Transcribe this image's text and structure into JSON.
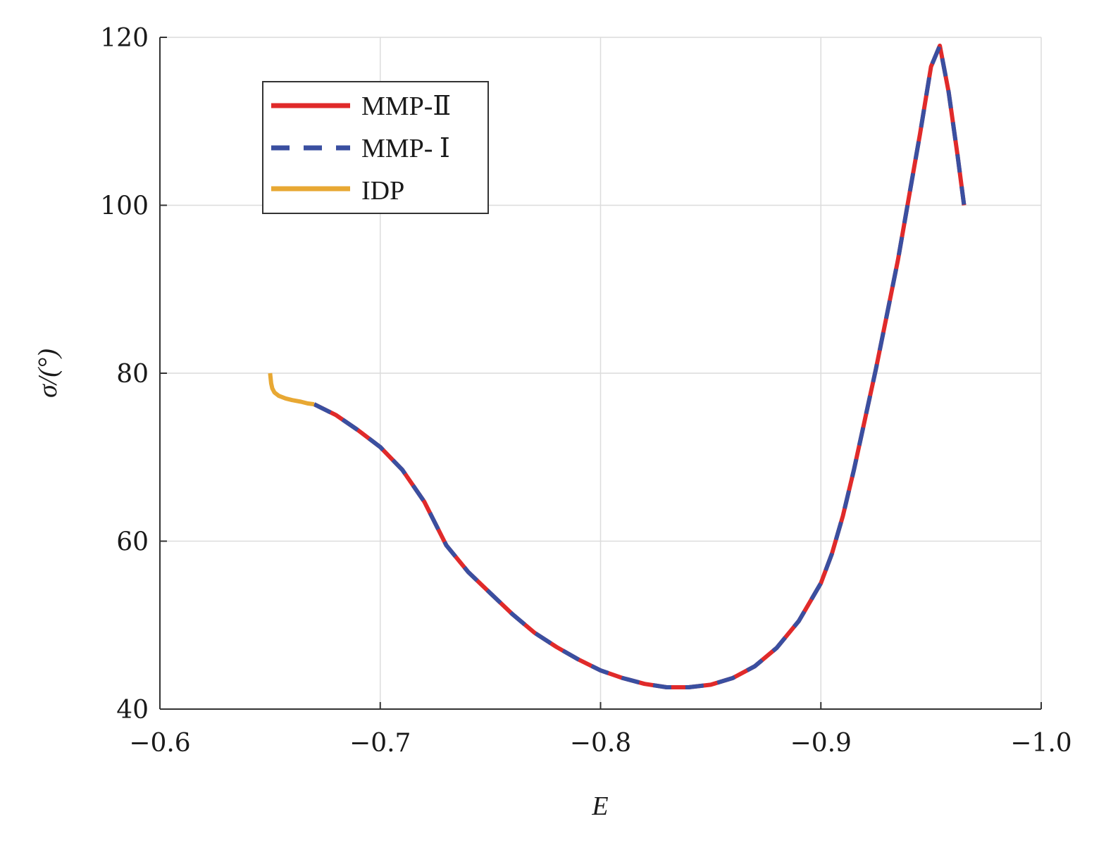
{
  "chart_data": {
    "type": "line",
    "xlabel": "E",
    "ylabel": "σ/(°)",
    "xlim": [
      -0.6,
      -1.0
    ],
    "ylim": [
      40,
      120
    ],
    "x_reversed": true,
    "grid": true,
    "legend_position": "top-left",
    "xticks": [
      -0.6,
      -0.7,
      -0.8,
      -0.9,
      -1.0
    ],
    "xtick_labels": [
      "−0.6",
      "−0.7",
      "−0.8",
      "−0.9",
      "−1.0"
    ],
    "yticks": [
      40,
      60,
      80,
      100,
      120
    ],
    "ytick_labels": [
      "40",
      "60",
      "80",
      "100",
      "120"
    ],
    "series": [
      {
        "name": "MMP-Ⅱ",
        "color": "#e02a2a",
        "dash": "solid",
        "x": [
          -0.67,
          -0.68,
          -0.69,
          -0.7,
          -0.71,
          -0.72,
          -0.73,
          -0.74,
          -0.75,
          -0.76,
          -0.77,
          -0.78,
          -0.79,
          -0.8,
          -0.81,
          -0.82,
          -0.83,
          -0.84,
          -0.85,
          -0.86,
          -0.87,
          -0.88,
          -0.89,
          -0.9,
          -0.905,
          -0.91,
          -0.915,
          -0.92,
          -0.925,
          -0.93,
          -0.935,
          -0.94,
          -0.945,
          -0.95,
          -0.954,
          -0.958,
          -0.962,
          -0.965
        ],
        "y": [
          76.3,
          75.0,
          73.2,
          71.2,
          68.5,
          64.7,
          59.5,
          56.3,
          53.8,
          51.3,
          49.1,
          47.4,
          45.9,
          44.6,
          43.7,
          43.0,
          42.6,
          42.6,
          42.9,
          43.7,
          45.1,
          47.3,
          50.5,
          55.0,
          58.5,
          63.0,
          68.5,
          74.5,
          80.5,
          87.0,
          93.5,
          101.0,
          108.5,
          116.5,
          119.0,
          113.5,
          106.0,
          100.0
        ]
      },
      {
        "name": "MMP- Ⅰ",
        "color": "#3a4fa0",
        "dash": "dashed",
        "x": [
          -0.67,
          -0.68,
          -0.69,
          -0.7,
          -0.71,
          -0.72,
          -0.73,
          -0.74,
          -0.75,
          -0.76,
          -0.77,
          -0.78,
          -0.79,
          -0.8,
          -0.81,
          -0.82,
          -0.83,
          -0.84,
          -0.85,
          -0.86,
          -0.87,
          -0.88,
          -0.89,
          -0.9,
          -0.905,
          -0.91,
          -0.915,
          -0.92,
          -0.925,
          -0.93,
          -0.935,
          -0.94,
          -0.945,
          -0.95,
          -0.954,
          -0.958,
          -0.962,
          -0.965
        ],
        "y": [
          76.3,
          75.0,
          73.2,
          71.2,
          68.5,
          64.7,
          59.5,
          56.3,
          53.8,
          51.3,
          49.1,
          47.4,
          45.9,
          44.6,
          43.7,
          43.0,
          42.6,
          42.6,
          42.9,
          43.7,
          45.1,
          47.3,
          50.5,
          55.0,
          58.5,
          63.0,
          68.5,
          74.5,
          80.5,
          87.0,
          93.5,
          101.0,
          108.5,
          116.5,
          119.0,
          113.5,
          106.0,
          100.0
        ]
      },
      {
        "name": "IDP",
        "color": "#e8a833",
        "dash": "solid",
        "x": [
          -0.65,
          -0.6505,
          -0.651,
          -0.652,
          -0.654,
          -0.657,
          -0.66,
          -0.664,
          -0.667,
          -0.67
        ],
        "y": [
          80.0,
          78.8,
          78.2,
          77.7,
          77.3,
          77.0,
          76.8,
          76.6,
          76.4,
          76.3
        ]
      }
    ]
  }
}
